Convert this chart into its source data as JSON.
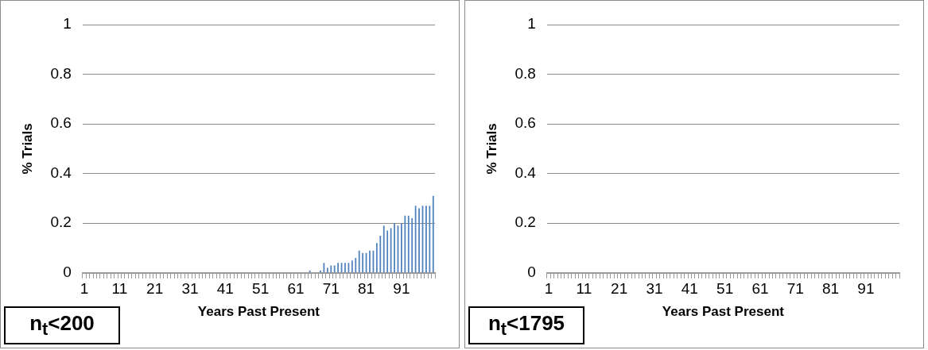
{
  "chart_data": [
    {
      "type": "bar",
      "ylabel": "% Trials",
      "xlabel": "Years Past Present",
      "annotations": [
        "n$_{t}$<200"
      ],
      "color": "#4f81bd",
      "ylim": [
        0,
        1
      ],
      "yticks": [
        0,
        0.2,
        0.4,
        0.6,
        0.8,
        1
      ],
      "grid": "y",
      "categories": [
        "1",
        null,
        null,
        null,
        null,
        null,
        null,
        null,
        null,
        null,
        "11",
        null,
        null,
        null,
        null,
        null,
        null,
        null,
        null,
        null,
        "21",
        null,
        null,
        null,
        null,
        null,
        null,
        null,
        null,
        null,
        "31",
        null,
        null,
        null,
        null,
        null,
        null,
        null,
        null,
        null,
        "41",
        null,
        null,
        null,
        null,
        null,
        null,
        null,
        null,
        null,
        "51",
        null,
        null,
        null,
        null,
        null,
        null,
        null,
        null,
        null,
        "61",
        null,
        null,
        null,
        null,
        null,
        null,
        null,
        null,
        null,
        "71",
        null,
        null,
        null,
        null,
        null,
        null,
        null,
        null,
        null,
        "81",
        null,
        null,
        null,
        null,
        null,
        null,
        null,
        null,
        null,
        "91",
        null,
        null,
        null,
        null,
        null,
        null,
        null,
        null,
        null
      ],
      "values": [
        0,
        0,
        0,
        0,
        0,
        0,
        0,
        0,
        0,
        0,
        0,
        0,
        0,
        0,
        0,
        0,
        0,
        0,
        0,
        0,
        0,
        0,
        0,
        0,
        0,
        0,
        0,
        0,
        0,
        0,
        0,
        0,
        0,
        0,
        0,
        0,
        0,
        0,
        0,
        0,
        0,
        0,
        0,
        0,
        0,
        0,
        0,
        0,
        0,
        0,
        0,
        0,
        0,
        0,
        0,
        0,
        0,
        0,
        0,
        0,
        0,
        0,
        0,
        0,
        0.01,
        0,
        0,
        0.01,
        0.04,
        0.02,
        0.03,
        0.03,
        0.04,
        0.04,
        0.04,
        0.04,
        0.05,
        0.06,
        0.09,
        0.08,
        0.08,
        0.09,
        0.09,
        0.12,
        0.15,
        0.19,
        0.17,
        0.18,
        0.2,
        0.19,
        0.2,
        0.23,
        0.23,
        0.22,
        0.27,
        0.26,
        0.27,
        0.27,
        0.27,
        0.31
      ]
    },
    {
      "type": "bar",
      "ylabel": "% Trials",
      "xlabel": "Years Past Present",
      "annotations": [
        "n$_{t}$<1795"
      ],
      "color": "#4f81bd",
      "ylim": [
        0,
        1
      ],
      "yticks": [
        0,
        0.2,
        0.4,
        0.6,
        0.8,
        1
      ],
      "grid": "y",
      "categories": [
        "1",
        null,
        null,
        null,
        null,
        null,
        null,
        null,
        null,
        null,
        "11",
        null,
        null,
        null,
        null,
        null,
        null,
        null,
        null,
        null,
        "21",
        null,
        null,
        null,
        null,
        null,
        null,
        null,
        null,
        null,
        "31",
        null,
        null,
        null,
        null,
        null,
        null,
        null,
        null,
        null,
        "41",
        null,
        null,
        null,
        null,
        null,
        null,
        null,
        null,
        null,
        "51",
        null,
        null,
        null,
        null,
        null,
        null,
        null,
        null,
        null,
        "61",
        null,
        null,
        null,
        null,
        null,
        null,
        null,
        null,
        null,
        "71",
        null,
        null,
        null,
        null,
        null,
        null,
        null,
        null,
        null,
        "81",
        null,
        null,
        null,
        null,
        null,
        null,
        null,
        null,
        null,
        "91",
        null,
        null,
        null,
        null,
        null,
        null,
        null,
        null,
        null
      ],
      "values": [
        0,
        0,
        0,
        0,
        0,
        0,
        0,
        0,
        0,
        0,
        0,
        0,
        0,
        0,
        0,
        0,
        0,
        0,
        0,
        0,
        0,
        0,
        0,
        0,
        0,
        0,
        0,
        0,
        0,
        0,
        0,
        0,
        0,
        0,
        0,
        0,
        0,
        0,
        0,
        0,
        0,
        0,
        0,
        0,
        0,
        0,
        0,
        0,
        0,
        0,
        0,
        0,
        0,
        0,
        0,
        0,
        0,
        0,
        0,
        0,
        0,
        0,
        0,
        0,
        0,
        0,
        0,
        0,
        0,
        0,
        0,
        0,
        0,
        0,
        0,
        0,
        0,
        0,
        0,
        0,
        0,
        0,
        0,
        0,
        0,
        0,
        0,
        0,
        0,
        0,
        0,
        0,
        0,
        0,
        0,
        0,
        0,
        0,
        0,
        0
      ]
    }
  ]
}
